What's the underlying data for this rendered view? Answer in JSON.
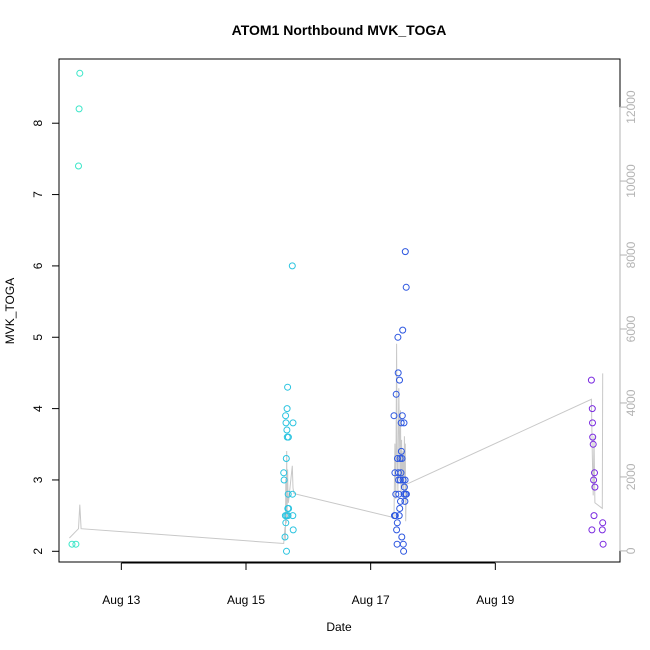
{
  "chart_data": {
    "type": "scatter",
    "title": "ATOM1 Northbound MVK_TOGA",
    "xlabel": "Date",
    "ylabel": "MVK_TOGA",
    "x_axis": {
      "type": "date",
      "range": [
        "2013-08-12T00:00",
        "2013-08-21T00:00"
      ],
      "ticks": [
        {
          "value": "2013-08-13T00:00",
          "label": "Aug 13"
        },
        {
          "value": "2013-08-15T00:00",
          "label": "Aug 15"
        },
        {
          "value": "2013-08-17T00:00",
          "label": "Aug 17"
        },
        {
          "value": "2013-08-19T00:00",
          "label": "Aug 19"
        }
      ]
    },
    "y_axis": {
      "range": [
        1.85,
        8.9
      ],
      "ticks": [
        2,
        3,
        4,
        5,
        6,
        7,
        8
      ]
    },
    "y2_axis": {
      "range": [
        -300,
        13300
      ],
      "ticks": [
        0,
        2000,
        4000,
        6000,
        8000,
        10000,
        12000
      ],
      "color": "#b3b3b3"
    },
    "grid": false,
    "colors": {
      "aug12": "#3ae6c8",
      "aug15": "#2bc4e0",
      "aug17": "#2c56e0",
      "aug20": "#7a2ae0",
      "line": "#c8c8c8"
    },
    "series": [
      {
        "color": "#3ae6c8",
        "points": [
          [
            "2013-08-12T05:00",
            2.1
          ],
          [
            "2013-08-12T06:30",
            2.1
          ],
          [
            "2013-08-12T07:30",
            7.4
          ],
          [
            "2013-08-12T07:45",
            8.2
          ],
          [
            "2013-08-12T08:00",
            8.7
          ]
        ]
      },
      {
        "color": "#2bc4e0",
        "points": [
          [
            "2013-08-15T14:30",
            3.1
          ],
          [
            "2013-08-15T14:40",
            3.0
          ],
          [
            "2013-08-15T15:00",
            2.2
          ],
          [
            "2013-08-15T15:10",
            2.5
          ],
          [
            "2013-08-15T15:15",
            3.9
          ],
          [
            "2013-08-15T15:20",
            2.4
          ],
          [
            "2013-08-15T15:25",
            3.8
          ],
          [
            "2013-08-15T15:30",
            3.3
          ],
          [
            "2013-08-15T15:35",
            2.0
          ],
          [
            "2013-08-15T15:40",
            2.5
          ],
          [
            "2013-08-15T15:45",
            3.7
          ],
          [
            "2013-08-15T15:50",
            4.0
          ],
          [
            "2013-08-15T15:55",
            3.6
          ],
          [
            "2013-08-15T16:00",
            4.3
          ],
          [
            "2013-08-15T16:05",
            2.6
          ],
          [
            "2013-08-15T16:10",
            2.5
          ],
          [
            "2013-08-15T16:15",
            2.8
          ],
          [
            "2013-08-15T16:20",
            3.6
          ],
          [
            "2013-08-15T16:25",
            2.6
          ],
          [
            "2013-08-15T17:50",
            6.0
          ],
          [
            "2013-08-15T17:55",
            2.8
          ],
          [
            "2013-08-15T18:00",
            2.5
          ],
          [
            "2013-08-15T18:05",
            3.8
          ],
          [
            "2013-08-15T18:10",
            2.3
          ]
        ]
      },
      {
        "color": "#2c56e0",
        "points": [
          [
            "2013-08-17T09:00",
            3.9
          ],
          [
            "2013-08-17T09:10",
            2.5
          ],
          [
            "2013-08-17T09:20",
            3.1
          ],
          [
            "2013-08-17T09:30",
            2.5
          ],
          [
            "2013-08-17T09:40",
            2.8
          ],
          [
            "2013-08-17T09:50",
            4.2
          ],
          [
            "2013-08-17T10:00",
            2.3
          ],
          [
            "2013-08-17T10:10",
            2.1
          ],
          [
            "2013-08-17T10:15",
            2.4
          ],
          [
            "2013-08-17T10:20",
            3.3
          ],
          [
            "2013-08-17T10:30",
            5.0
          ],
          [
            "2013-08-17T10:35",
            4.5
          ],
          [
            "2013-08-17T10:40",
            3.1
          ],
          [
            "2013-08-17T10:45",
            3.0
          ],
          [
            "2013-08-17T10:50",
            2.8
          ],
          [
            "2013-08-17T11:00",
            2.5
          ],
          [
            "2013-08-17T11:05",
            4.4
          ],
          [
            "2013-08-17T11:10",
            2.6
          ],
          [
            "2013-08-17T11:20",
            3.3
          ],
          [
            "2013-08-17T11:25",
            3.0
          ],
          [
            "2013-08-17T11:30",
            2.7
          ],
          [
            "2013-08-17T11:40",
            3.1
          ],
          [
            "2013-08-17T11:45",
            3.8
          ],
          [
            "2013-08-17T11:50",
            3.4
          ],
          [
            "2013-08-17T12:00",
            2.2
          ],
          [
            "2013-08-17T12:05",
            3.3
          ],
          [
            "2013-08-17T12:10",
            3.9
          ],
          [
            "2013-08-17T12:20",
            5.1
          ],
          [
            "2013-08-17T12:30",
            3.0
          ],
          [
            "2013-08-17T12:35",
            2.1
          ],
          [
            "2013-08-17T12:40",
            2.0
          ],
          [
            "2013-08-17T12:50",
            3.8
          ],
          [
            "2013-08-17T12:55",
            2.8
          ],
          [
            "2013-08-17T13:00",
            2.9
          ],
          [
            "2013-08-17T13:10",
            2.7
          ],
          [
            "2013-08-17T13:15",
            3.0
          ],
          [
            "2013-08-17T13:20",
            6.2
          ],
          [
            "2013-08-17T13:30",
            2.8
          ],
          [
            "2013-08-17T13:40",
            5.7
          ],
          [
            "2013-08-17T13:45",
            2.8
          ]
        ]
      },
      {
        "color": "#7a2ae0",
        "points": [
          [
            "2013-08-20T13:00",
            4.4
          ],
          [
            "2013-08-20T13:10",
            2.3
          ],
          [
            "2013-08-20T13:20",
            4.0
          ],
          [
            "2013-08-20T13:25",
            3.8
          ],
          [
            "2013-08-20T13:30",
            3.6
          ],
          [
            "2013-08-20T13:40",
            3.5
          ],
          [
            "2013-08-20T13:50",
            3.0
          ],
          [
            "2013-08-20T14:00",
            2.5
          ],
          [
            "2013-08-20T14:10",
            3.1
          ],
          [
            "2013-08-20T14:20",
            2.9
          ],
          [
            "2013-08-20T17:10",
            2.3
          ],
          [
            "2013-08-20T17:20",
            2.4
          ],
          [
            "2013-08-20T17:30",
            2.1
          ]
        ]
      }
    ],
    "line_series": {
      "axis": "y2",
      "color": "#c8c8c8",
      "points": [
        [
          "2013-08-12T04:00",
          350
        ],
        [
          "2013-08-12T07:30",
          600
        ],
        [
          "2013-08-12T08:00",
          1250
        ],
        [
          "2013-08-12T08:30",
          600
        ],
        [
          "2013-08-15T14:30",
          200
        ],
        [
          "2013-08-15T15:00",
          650
        ],
        [
          "2013-08-15T15:10",
          300
        ],
        [
          "2013-08-15T15:20",
          1950
        ],
        [
          "2013-08-15T15:30",
          750
        ],
        [
          "2013-08-15T15:40",
          2700
        ],
        [
          "2013-08-15T15:50",
          900
        ],
        [
          "2013-08-15T16:00",
          2200
        ],
        [
          "2013-08-15T16:10",
          1500
        ],
        [
          "2013-08-15T16:20",
          1300
        ],
        [
          "2013-08-15T17:50",
          2300
        ],
        [
          "2013-08-15T18:05",
          1700
        ],
        [
          "2013-08-15T18:30",
          1550
        ],
        [
          "2013-08-17T09:00",
          900
        ],
        [
          "2013-08-17T09:20",
          2900
        ],
        [
          "2013-08-17T09:40",
          1400
        ],
        [
          "2013-08-17T10:00",
          5600
        ],
        [
          "2013-08-17T10:10",
          2600
        ],
        [
          "2013-08-17T10:30",
          1600
        ],
        [
          "2013-08-17T10:50",
          4400
        ],
        [
          "2013-08-17T11:05",
          3000
        ],
        [
          "2013-08-17T11:20",
          1900
        ],
        [
          "2013-08-17T11:30",
          3800
        ],
        [
          "2013-08-17T11:40",
          1500
        ],
        [
          "2013-08-17T11:55",
          3000
        ],
        [
          "2013-08-17T12:10",
          1700
        ],
        [
          "2013-08-17T12:30",
          2700
        ],
        [
          "2013-08-17T12:45",
          1300
        ],
        [
          "2013-08-17T13:00",
          3100
        ],
        [
          "2013-08-17T13:10",
          2000
        ],
        [
          "2013-08-17T13:20",
          2900
        ],
        [
          "2013-08-17T13:30",
          800
        ],
        [
          "2013-08-17T13:45",
          1800
        ],
        [
          "2013-08-20T13:00",
          4100
        ],
        [
          "2013-08-20T13:20",
          2600
        ],
        [
          "2013-08-20T13:40",
          1500
        ],
        [
          "2013-08-20T14:00",
          3100
        ],
        [
          "2013-08-20T14:20",
          1300
        ],
        [
          "2013-08-20T17:10",
          1150
        ],
        [
          "2013-08-20T17:20",
          4800
        ]
      ]
    }
  }
}
